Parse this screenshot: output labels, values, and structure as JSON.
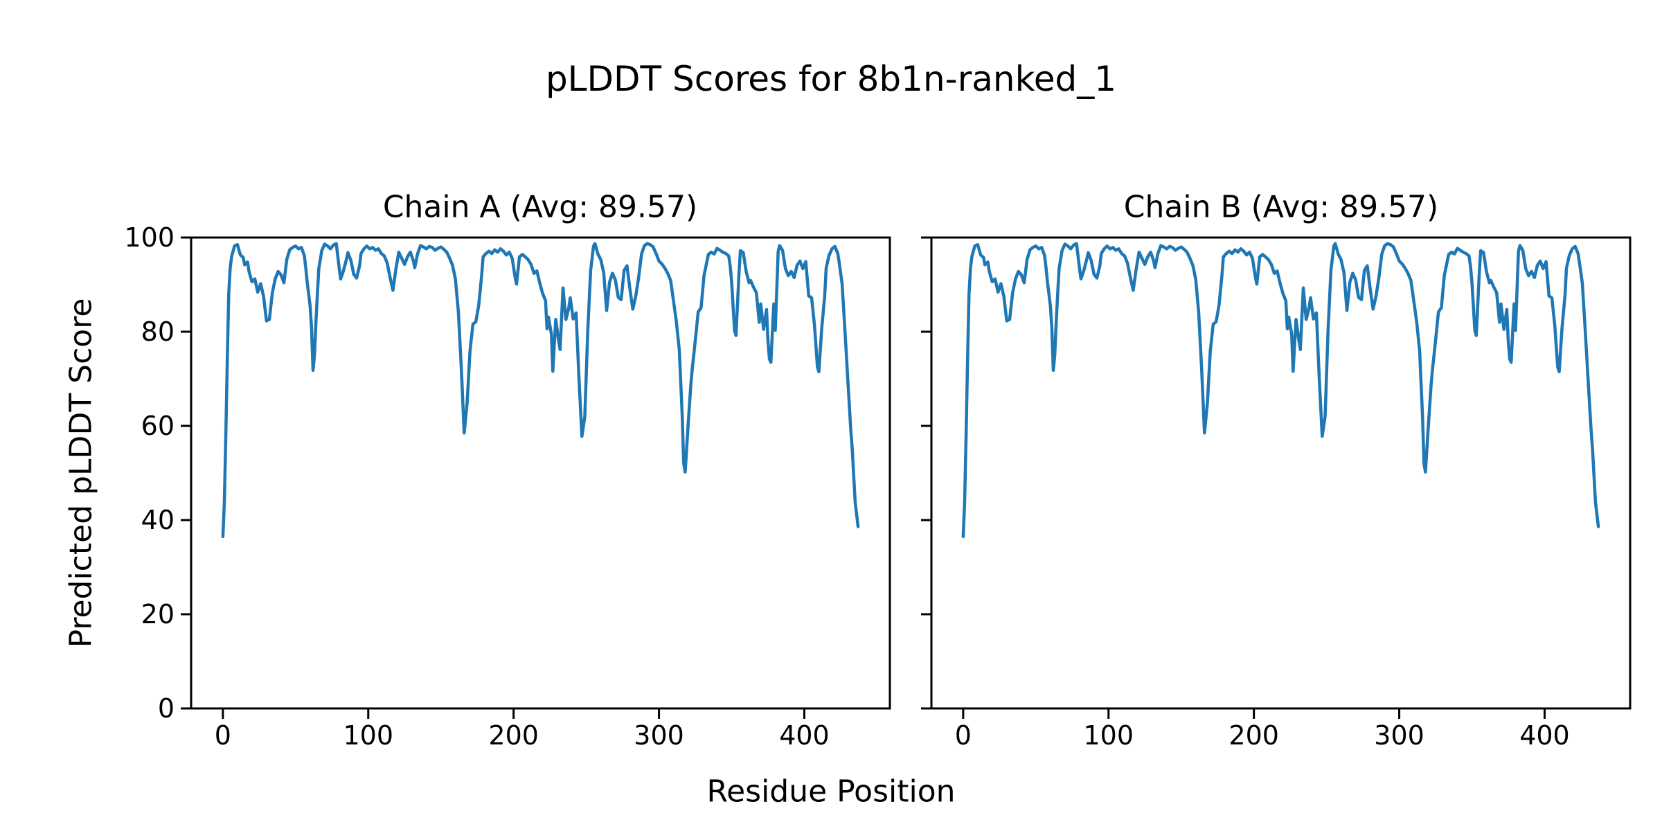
{
  "chart_data": {
    "type": "line",
    "title": "pLDDT Scores for 8b1n-ranked_1",
    "xlabel": "Residue Position",
    "ylabel": "Predicted pLDDT Score",
    "xticks": [
      0,
      100,
      200,
      300,
      400
    ],
    "yticks": [
      0,
      20,
      40,
      60,
      80,
      100
    ],
    "xlim": [
      -21.85,
      458.85
    ],
    "ylim": [
      0,
      100
    ],
    "grid": false,
    "legend": "none",
    "line_color": "#1f77b4",
    "axis_color": "#000000",
    "background_color": "#ffffff",
    "panels": [
      {
        "chain": "A",
        "title": "Chain A (Avg: 89.57)",
        "avg": "89.57",
        "y_tick_labels_visible": true
      },
      {
        "chain": "B",
        "title": "Chain B (Avg: 89.57)",
        "avg": "89.57",
        "y_tick_labels_visible": false
      }
    ],
    "series_note": "Both chains plot the identical pLDDT curve",
    "x": [
      0,
      1,
      2,
      3,
      4,
      5,
      6,
      8,
      10,
      12,
      14,
      15,
      17,
      18,
      20,
      22,
      24,
      26,
      28,
      30,
      32,
      34,
      36,
      38,
      40,
      42,
      44,
      46,
      48,
      50,
      52,
      54,
      56,
      57,
      58,
      60,
      61,
      62,
      63,
      64,
      65,
      66,
      68,
      70,
      72,
      74,
      76,
      78,
      80,
      81,
      83,
      85,
      86,
      88,
      90,
      92,
      94,
      95,
      97,
      99,
      101,
      103,
      105,
      107,
      109,
      111,
      113,
      115,
      117,
      119,
      121,
      123,
      125,
      127,
      129,
      131,
      132,
      134,
      136,
      138,
      140,
      142,
      144,
      146,
      148,
      150,
      152,
      154,
      156,
      158,
      160,
      162,
      164,
      166,
      168,
      170,
      172,
      174,
      176,
      178,
      179,
      181,
      183,
      185,
      187,
      189,
      191,
      193,
      195,
      197,
      199,
      201,
      202,
      204,
      206,
      208,
      210,
      212,
      214,
      216,
      218,
      220,
      222,
      223,
      224,
      226,
      227,
      229,
      231,
      232,
      234,
      236,
      238,
      239,
      241,
      243,
      245,
      247,
      249,
      251,
      253,
      255,
      256,
      258,
      260,
      262,
      264,
      266,
      268,
      270,
      272,
      274,
      276,
      278,
      280,
      282,
      284,
      286,
      288,
      290,
      292,
      294,
      296,
      298,
      300,
      302,
      304,
      306,
      308,
      310,
      312,
      314,
      316,
      317,
      318,
      320,
      322,
      323,
      325,
      327,
      329,
      331,
      334,
      336,
      338,
      340,
      342,
      344,
      346,
      348,
      349,
      350,
      352,
      353,
      355,
      356,
      358,
      360,
      362,
      363,
      365,
      367,
      369,
      370,
      372,
      374,
      375,
      376,
      377,
      379,
      380,
      382,
      383,
      385,
      387,
      389,
      391,
      393,
      395,
      397,
      399,
      401,
      403,
      405,
      407,
      409,
      410,
      412,
      414,
      415,
      417,
      419,
      421,
      423,
      424,
      426,
      428,
      430,
      432,
      433,
      435,
      437
    ],
    "y": [
      36.5,
      44,
      58,
      74,
      88,
      93.5,
      96,
      98.2,
      98.5,
      96.3,
      95.8,
      94.2,
      94.8,
      92.8,
      90.6,
      91.2,
      88.4,
      90.2,
      87.5,
      82.3,
      82.6,
      88.2,
      91.2,
      92.8,
      92.1,
      90.4,
      95.4,
      97.4,
      97.9,
      98.2,
      97.6,
      97.9,
      96.2,
      93.6,
      90.5,
      85.5,
      80.8,
      71.8,
      75,
      82,
      88,
      93.4,
      97.2,
      98.6,
      98.2,
      97.6,
      98.4,
      98.7,
      93.5,
      91.2,
      93,
      95.4,
      96.8,
      95.2,
      92.2,
      91.4,
      94,
      96.6,
      97.6,
      98.2,
      97.6,
      97.9,
      97.3,
      97.6,
      96.6,
      96.1,
      94.6,
      91.5,
      88.8,
      93.2,
      96.9,
      95.6,
      94.3,
      95.9,
      96.9,
      95.1,
      93.6,
      96.6,
      98.3,
      98,
      97.6,
      98.1,
      97.9,
      97.3,
      97.7,
      98,
      97.5,
      96.9,
      95.6,
      94.1,
      91.1,
      84.2,
      72.5,
      58.5,
      64.8,
      75.9,
      81.6,
      82.1,
      85.6,
      91.9,
      95.9,
      96.6,
      97.1,
      96.6,
      97.4,
      96.9,
      97.6,
      97.1,
      96.3,
      96.9,
      95.6,
      91.6,
      90.1,
      95.9,
      96.4,
      95.9,
      95.3,
      94.3,
      92.4,
      92.9,
      90.3,
      88.1,
      86.6,
      80.6,
      83.1,
      79.5,
      71.6,
      82.6,
      78.1,
      76.2,
      89.3,
      82.6,
      85.1,
      87.2,
      82.7,
      84,
      70,
      57.8,
      62,
      80,
      93,
      98.2,
      98.7,
      96.5,
      95.3,
      92.5,
      84.5,
      90.5,
      92.4,
      91,
      87.3,
      86.8,
      93,
      94,
      89.1,
      84.8,
      87.5,
      91.5,
      96.5,
      98.3,
      98.7,
      98.5,
      98,
      96.6,
      95,
      94.4,
      93.5,
      92.4,
      90.9,
      86.5,
      82,
      76,
      62,
      52,
      50.2,
      60,
      69,
      72.3,
      78.1,
      84.2,
      85.1,
      91.9,
      96.4,
      96.9,
      96.5,
      97.7,
      97.3,
      96.9,
      96.6,
      96.1,
      94,
      90.6,
      80.3,
      79.2,
      92,
      97.2,
      96.8,
      92.8,
      90.4,
      90.9,
      89.5,
      88.3,
      82,
      85.9,
      80.5,
      84.7,
      78,
      74.2,
      73.5,
      85.9,
      80.3,
      97,
      98.3,
      97.3,
      93.4,
      91.9,
      92.8,
      91.5,
      94.1,
      95,
      93.4,
      94.9,
      87.6,
      87.2,
      81.3,
      72.5,
      71.5,
      80.9,
      87.6,
      93.5,
      96.2,
      97.6,
      98.1,
      96.6,
      94.7,
      90.2,
      80.1,
      69.5,
      59.1,
      55,
      43.8,
      38.6
    ]
  }
}
